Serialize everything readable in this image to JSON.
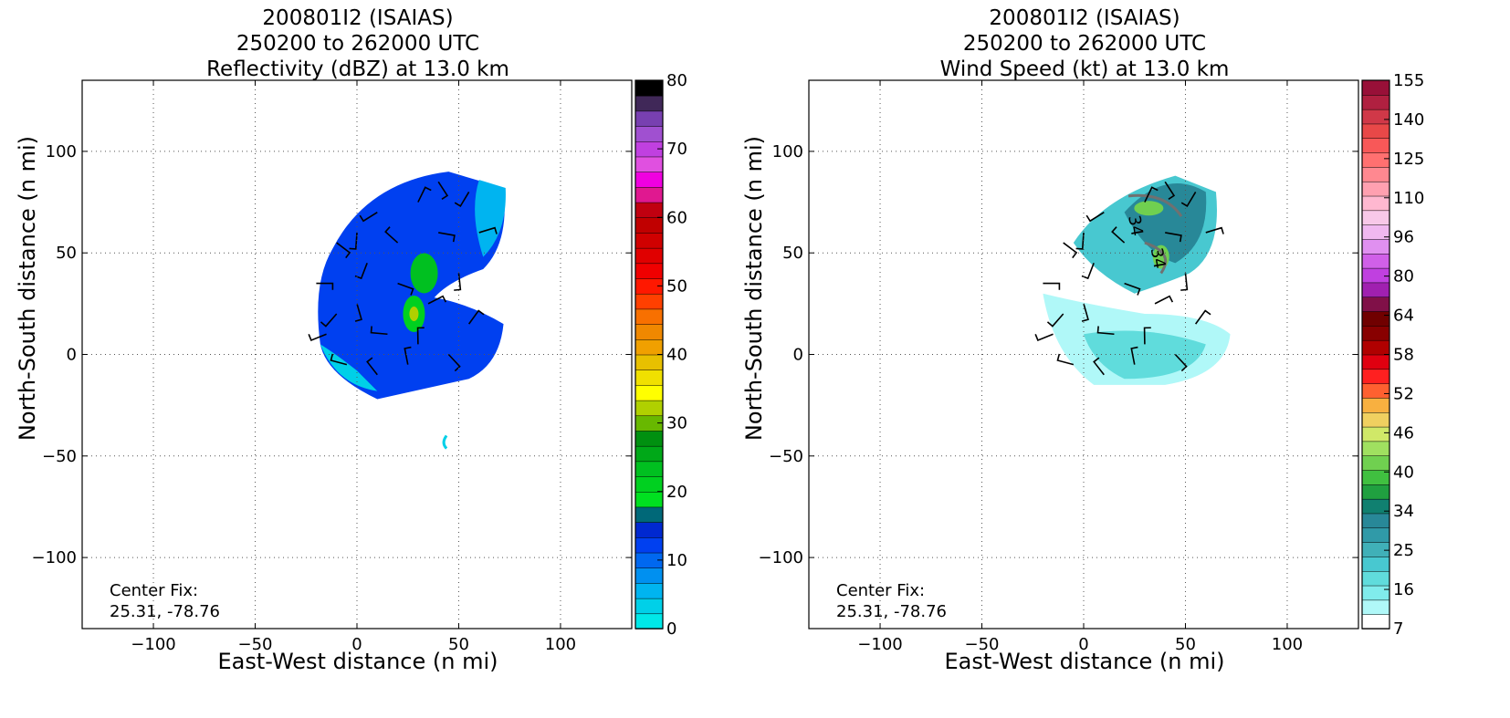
{
  "chart_data": [
    {
      "type": "heatmap",
      "title_line1": "200801I2 (ISAIAS)",
      "title_line2": "250200 to 262000 UTC",
      "title_line3": "Reflectivity (dBZ) at 13.0 km",
      "xlabel": "East-West distance (n mi)",
      "ylabel": "North-South distance (n mi)",
      "xlim": [
        -135,
        135
      ],
      "ylim": [
        -135,
        135
      ],
      "x_ticks": [
        "−100",
        "−50",
        "0",
        "50",
        "100"
      ],
      "y_ticks": [
        "100",
        "50",
        "0",
        "−50",
        "−100"
      ],
      "grid": true,
      "center_fix_label": "Center Fix:",
      "center_fix_value": "25.31, -78.76",
      "colorbar": {
        "ticks": [
          "80",
          "70",
          "60",
          "50",
          "40",
          "30",
          "20",
          "10",
          "0"
        ],
        "colors": [
          "#00e8e8",
          "#00d0e8",
          "#00b4f0",
          "#0090f0",
          "#0068f0",
          "#0040f0",
          "#0028d0",
          "#006878",
          "#00e020",
          "#00d020",
          "#00c020",
          "#00a818",
          "#009010",
          "#68b800",
          "#b0d000",
          "#ffff00",
          "#f0e000",
          "#e8c000",
          "#f0a000",
          "#f08800",
          "#f87000",
          "#ff4000",
          "#ff1800",
          "#f00000",
          "#e00000",
          "#d00000",
          "#c00000",
          "#c00010",
          "#e01890",
          "#f000e0",
          "#e050e0",
          "#c040e0",
          "#a050d0",
          "#7840b0",
          "#402858",
          "#000000"
        ]
      }
    },
    {
      "type": "heatmap",
      "title_line1": "200801I2 (ISAIAS)",
      "title_line2": "250200 to 262000 UTC",
      "title_line3": "Wind Speed (kt) at 13.0 km",
      "xlabel": "East-West distance (n mi)",
      "ylabel": "North-South distance (n mi)",
      "xlim": [
        -135,
        135
      ],
      "ylim": [
        -135,
        135
      ],
      "x_ticks": [
        "−100",
        "−50",
        "0",
        "50",
        "100"
      ],
      "y_ticks": [
        "100",
        "50",
        "0",
        "−50",
        "−100"
      ],
      "grid": true,
      "contour_label": "34",
      "center_fix_label": "Center Fix:",
      "center_fix_value": "25.31, -78.76",
      "colorbar": {
        "ticks": [
          "155",
          "140",
          "125",
          "110",
          "96",
          "80",
          "64",
          "58",
          "52",
          "46",
          "40",
          "34",
          "25",
          "16",
          "7"
        ],
        "colors": [
          "#ffffff",
          "#b0f8f8",
          "#80ecec",
          "#60dcdc",
          "#48c8d0",
          "#40b0b8",
          "#309aa8",
          "#288898",
          "#108070",
          "#20a040",
          "#40c040",
          "#70d050",
          "#a0e060",
          "#d0e868",
          "#f0d060",
          "#f8b040",
          "#ff6030",
          "#ff2020",
          "#e00010",
          "#b00000",
          "#880000",
          "#700000",
          "#801048",
          "#a020b0",
          "#c040e0",
          "#d060e8",
          "#e090f0",
          "#f0b8f0",
          "#f8c8e8",
          "#ffb8d0",
          "#ffa0b0",
          "#ff8890",
          "#ff7070",
          "#f85858",
          "#e84848",
          "#d03848",
          "#b02040",
          "#981038"
        ]
      }
    }
  ]
}
